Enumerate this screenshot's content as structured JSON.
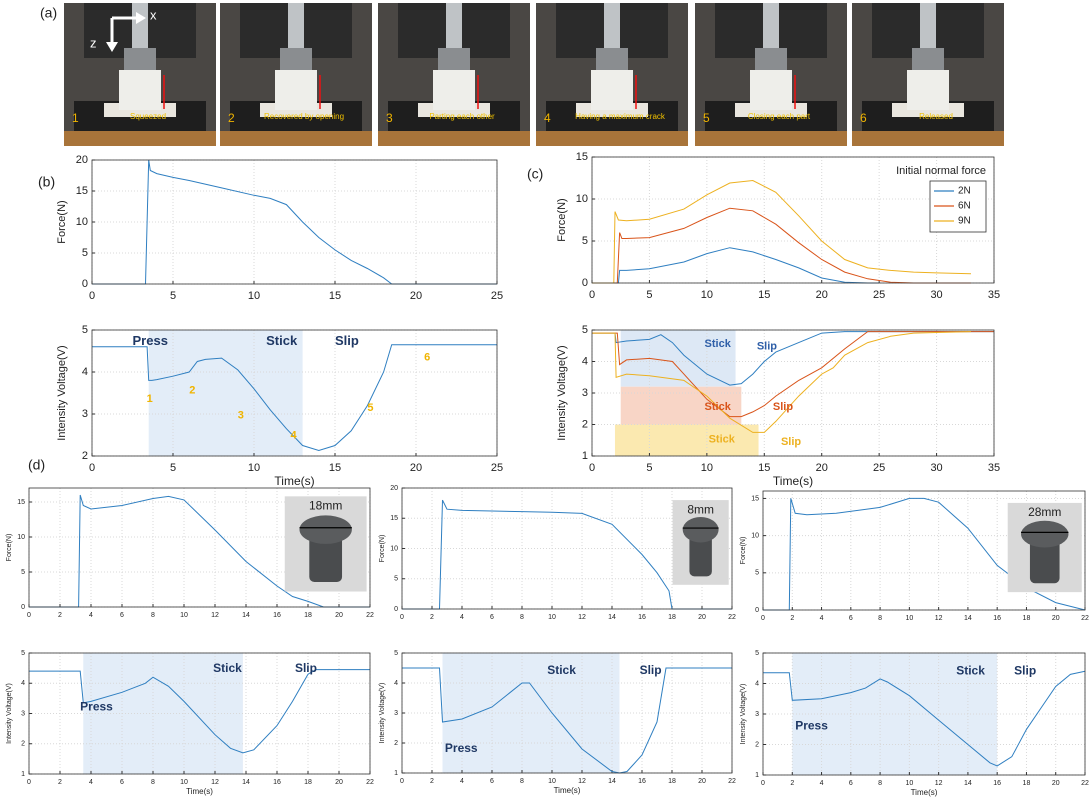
{
  "panel_labels": [
    "(a)",
    "(b)",
    "(c)",
    "(d)"
  ],
  "photo_axes": [
    "x",
    "z"
  ],
  "photos": [
    {
      "number": "1",
      "caption": "Squeezed"
    },
    {
      "number": "2",
      "caption": "Recovered by opening"
    },
    {
      "number": "3",
      "caption": "Parting each other"
    },
    {
      "number": "4",
      "caption": "Having a maximum crack"
    },
    {
      "number": "5",
      "caption": "Closing each part"
    },
    {
      "number": "6",
      "caption": "Released"
    }
  ],
  "chart_data": [
    {
      "type": "line",
      "ylabel": "Force(N)",
      "xlim": [
        0,
        25
      ],
      "ylim": [
        0,
        20
      ],
      "xticks": [
        0,
        5,
        10,
        15,
        20,
        25
      ],
      "yticks": [
        0,
        5,
        10,
        15,
        20
      ],
      "grid": true,
      "series": [
        {
          "color": "#2f7fc1",
          "x": [
            0,
            3.3,
            3.5,
            3.6,
            4,
            5,
            6,
            8,
            10,
            11,
            12,
            13,
            14,
            15,
            16,
            17,
            18,
            18.5,
            19,
            20,
            25
          ],
          "values": [
            0,
            0,
            20,
            18.3,
            17.8,
            17.2,
            16.7,
            15.5,
            14.3,
            13.8,
            12.8,
            10,
            7.5,
            5.5,
            3.8,
            2.5,
            1,
            0,
            0,
            0,
            0
          ]
        }
      ]
    },
    {
      "type": "line",
      "ylabel": "Intensity Voltage(V)",
      "xlabel": "Time(s)",
      "xlim": [
        0,
        25
      ],
      "ylim": [
        2,
        5
      ],
      "xticks": [
        0,
        5,
        10,
        15,
        20,
        25
      ],
      "yticks": [
        2,
        3,
        4,
        5
      ],
      "grid": true,
      "spans": [
        {
          "x": [
            3.5,
            13
          ],
          "color": "#e3edf8"
        }
      ],
      "series": [
        {
          "color": "#2f7fc1",
          "x": [
            0,
            3.4,
            3.5,
            3.7,
            4,
            5,
            6,
            6.5,
            7,
            8,
            9,
            10,
            11,
            12,
            13,
            14,
            15,
            16,
            17,
            18,
            18.5,
            20,
            25
          ],
          "values": [
            4.6,
            4.6,
            3.8,
            3.8,
            3.82,
            3.9,
            4.0,
            4.25,
            4.3,
            4.33,
            4.05,
            3.6,
            3.1,
            2.65,
            2.25,
            2.13,
            2.25,
            2.6,
            3.2,
            4.0,
            4.65,
            4.65,
            4.65
          ]
        }
      ],
      "annotations": [
        {
          "text": "Press",
          "color": "#1f3864"
        },
        {
          "text": "Stick",
          "color": "#1f3864"
        },
        {
          "text": "Slip",
          "color": "#1f3864"
        },
        {
          "text": "1",
          "color": "#f0b400"
        },
        {
          "text": "2",
          "color": "#f0b400"
        },
        {
          "text": "3",
          "color": "#f0b400"
        },
        {
          "text": "4",
          "color": "#f0b400"
        },
        {
          "text": "5",
          "color": "#f0b400"
        },
        {
          "text": "6",
          "color": "#f0b400"
        }
      ]
    },
    {
      "type": "line",
      "ylabel": "Force(N)",
      "xlim": [
        0,
        35
      ],
      "ylim": [
        0,
        15
      ],
      "xticks": [
        0,
        5,
        10,
        15,
        20,
        25,
        30,
        35
      ],
      "yticks": [
        0,
        5,
        10,
        15
      ],
      "grid": true,
      "legend_title": "Initial normal force",
      "legend": "upper right",
      "series": [
        {
          "name": "2N",
          "color": "#2f7fc1",
          "x": [
            0,
            2.3,
            2.4,
            3,
            5,
            8,
            10,
            12,
            14,
            16,
            18,
            20,
            22,
            24,
            25
          ],
          "values": [
            0,
            0,
            1.5,
            1.5,
            1.7,
            2.5,
            3.5,
            4.2,
            3.7,
            2.8,
            1.8,
            0.6,
            0.1,
            0,
            0
          ]
        },
        {
          "name": "6N",
          "color": "#d9541a",
          "x": [
            0,
            2.2,
            2.4,
            2.6,
            3,
            5,
            8,
            10,
            12,
            14,
            16,
            18,
            20,
            22,
            24,
            26,
            28,
            33
          ],
          "values": [
            0,
            0,
            6,
            5.3,
            5.3,
            5.4,
            6.5,
            7.8,
            8.9,
            8.6,
            7,
            4.8,
            2.8,
            1.3,
            0.5,
            0.1,
            0,
            0
          ]
        },
        {
          "name": "9N",
          "color": "#edb120",
          "x": [
            0,
            1.9,
            2.0,
            2.3,
            3,
            5,
            8,
            10,
            12,
            14,
            16,
            18,
            20,
            22,
            24,
            26,
            28,
            30,
            33
          ],
          "values": [
            0,
            0,
            8.5,
            7.5,
            7.4,
            7.6,
            8.8,
            10.5,
            11.9,
            12.2,
            10.8,
            8,
            5,
            2.8,
            1.8,
            1.5,
            1.3,
            1.2,
            1.1
          ]
        }
      ]
    },
    {
      "type": "line",
      "ylabel": "Intensity Voltage(V)",
      "xlabel": "Time(s)",
      "xlim": [
        0,
        35
      ],
      "ylim": [
        1,
        5
      ],
      "xticks": [
        0,
        5,
        10,
        15,
        20,
        25,
        30,
        35
      ],
      "yticks": [
        1,
        2,
        3,
        4,
        5
      ],
      "grid": true,
      "spans": [
        {
          "x": [
            2.5,
            12.5
          ],
          "y": [
            3.2,
            5
          ],
          "color": "#dde8f5"
        },
        {
          "x": [
            2.5,
            13
          ],
          "y": [
            2,
            3.2
          ],
          "color": "#f8d5c6"
        },
        {
          "x": [
            2,
            14.5
          ],
          "y": [
            1,
            2
          ],
          "color": "#fbe9b0"
        }
      ],
      "series": [
        {
          "color": "#2f7fc1",
          "x": [
            0,
            2,
            2.1,
            3,
            5,
            6,
            7,
            8,
            10,
            12,
            13,
            14,
            15,
            16,
            18,
            20,
            22,
            25,
            35
          ],
          "values": [
            4.9,
            4.9,
            4.6,
            4.65,
            4.7,
            4.85,
            4.6,
            4.2,
            3.6,
            3.25,
            3.3,
            3.6,
            4.0,
            4.3,
            4.6,
            4.9,
            4.95,
            4.95,
            4.95
          ]
        },
        {
          "color": "#d9541a",
          "x": [
            0,
            2.2,
            2.4,
            3,
            5,
            7,
            8,
            10,
            12,
            13,
            14,
            15,
            16,
            18,
            20,
            22,
            24,
            26,
            35
          ],
          "values": [
            4.9,
            4.9,
            3.9,
            4.05,
            4.1,
            4.0,
            3.6,
            2.8,
            2.25,
            2.25,
            2.4,
            2.6,
            2.9,
            3.4,
            3.8,
            4.4,
            4.95,
            4.95,
            4.95
          ]
        },
        {
          "color": "#edb120",
          "x": [
            0,
            2,
            2.1,
            3,
            5,
            8,
            10,
            12,
            14,
            15,
            16,
            18,
            20,
            21,
            22,
            24,
            26,
            28,
            30,
            33
          ],
          "values": [
            4.9,
            4.9,
            3.5,
            3.6,
            3.55,
            3.4,
            2.9,
            2.2,
            1.75,
            1.75,
            2.1,
            2.9,
            3.6,
            3.8,
            4.2,
            4.6,
            4.8,
            4.9,
            4.92,
            4.95
          ]
        }
      ],
      "annotations": [
        {
          "text": "Stick",
          "color": "#2f5fa8"
        },
        {
          "text": "Slip",
          "color": "#2f5fa8"
        },
        {
          "text": "Stick",
          "color": "#d9541a"
        },
        {
          "text": "Slip",
          "color": "#d9541a"
        },
        {
          "text": "Stick",
          "color": "#edb120"
        },
        {
          "text": "Slip",
          "color": "#edb120"
        }
      ]
    },
    {
      "type": "line",
      "ylabel": "Force(N)",
      "xlim": [
        0,
        22
      ],
      "ylim": [
        0,
        17
      ],
      "xticks": [
        0,
        2,
        4,
        6,
        8,
        10,
        12,
        14,
        16,
        18,
        20,
        22
      ],
      "yticks": [
        0,
        5,
        10,
        15
      ],
      "grid": true,
      "inset_label": "18mm",
      "series": [
        {
          "color": "#2f7fc1",
          "x": [
            0,
            3.2,
            3.3,
            3.5,
            4,
            6,
            8,
            9,
            10,
            12,
            14,
            16,
            17,
            18,
            19,
            20,
            22
          ],
          "values": [
            0,
            0,
            16,
            14.5,
            14,
            14.5,
            15.5,
            15.8,
            15.3,
            11,
            6.5,
            3,
            1.5,
            0.8,
            0,
            0,
            0
          ]
        }
      ]
    },
    {
      "type": "line",
      "ylabel": "Force(N)",
      "xlim": [
        0,
        22
      ],
      "ylim": [
        0,
        20
      ],
      "xticks": [
        0,
        2,
        4,
        6,
        8,
        10,
        12,
        14,
        16,
        18,
        20,
        22
      ],
      "yticks": [
        0,
        5,
        10,
        15,
        20
      ],
      "grid": true,
      "inset_label": "8mm",
      "series": [
        {
          "color": "#2f7fc1",
          "x": [
            0,
            2.5,
            2.7,
            3,
            4,
            6,
            8,
            10,
            12,
            14,
            16,
            17,
            17.8,
            18,
            20,
            22
          ],
          "values": [
            0,
            0,
            18,
            16.5,
            16.3,
            16.2,
            16.1,
            16,
            15.8,
            14,
            9,
            6,
            3,
            0,
            0,
            0
          ]
        }
      ]
    },
    {
      "type": "line",
      "ylabel": "Force(N)",
      "xlim": [
        0,
        22
      ],
      "ylim": [
        0,
        16
      ],
      "xticks": [
        0,
        2,
        4,
        6,
        8,
        10,
        12,
        14,
        16,
        18,
        20,
        22
      ],
      "yticks": [
        0,
        5,
        10,
        15
      ],
      "grid": true,
      "inset_label": "28mm",
      "series": [
        {
          "color": "#2f7fc1",
          "x": [
            0,
            1.8,
            1.9,
            2.2,
            3,
            5,
            8,
            10,
            11,
            12,
            14,
            16,
            18,
            20,
            22
          ],
          "values": [
            0,
            0,
            15,
            13,
            12.8,
            13,
            13.8,
            15,
            15,
            14.5,
            11,
            6,
            3,
            1,
            0
          ]
        }
      ]
    },
    {
      "type": "line",
      "ylabel": "Intensity Voltage(V)",
      "xlabel": "Time(s)",
      "xlim": [
        0,
        22
      ],
      "ylim": [
        1,
        5
      ],
      "xticks": [
        0,
        2,
        4,
        6,
        8,
        10,
        12,
        14,
        16,
        18,
        20,
        22
      ],
      "yticks": [
        1,
        2,
        3,
        4,
        5
      ],
      "grid": true,
      "spans": [
        {
          "x": [
            3.5,
            13.8
          ],
          "color": "#e3edf8"
        }
      ],
      "series": [
        {
          "color": "#2f7fc1",
          "x": [
            0,
            3.3,
            3.5,
            4,
            6,
            7,
            7.5,
            8,
            9,
            10,
            12,
            13,
            13.8,
            14.5,
            16,
            17,
            18,
            18.5,
            20,
            22
          ],
          "values": [
            4.4,
            4.4,
            3.35,
            3.4,
            3.7,
            3.9,
            4.0,
            4.2,
            3.9,
            3.4,
            2.3,
            1.85,
            1.7,
            1.8,
            2.6,
            3.4,
            4.3,
            4.45,
            4.45,
            4.45
          ]
        }
      ],
      "annotations": [
        {
          "text": "Press",
          "color": "#1f3864"
        },
        {
          "text": "Stick",
          "color": "#1f3864"
        },
        {
          "text": "Slip",
          "color": "#1f3864"
        }
      ]
    },
    {
      "type": "line",
      "ylabel": "Intensity Voltage(V)",
      "xlabel": "Time(s)",
      "xlim": [
        0,
        22
      ],
      "ylim": [
        1,
        5
      ],
      "xticks": [
        0,
        2,
        4,
        6,
        8,
        10,
        12,
        14,
        16,
        18,
        20,
        22
      ],
      "yticks": [
        1,
        2,
        3,
        4,
        5
      ],
      "grid": true,
      "spans": [
        {
          "x": [
            2.7,
            14.5
          ],
          "color": "#e3edf8"
        }
      ],
      "series": [
        {
          "color": "#2f7fc1",
          "x": [
            0,
            2.5,
            2.7,
            4,
            6,
            7,
            8,
            8.5,
            10,
            12,
            14,
            14.5,
            15,
            16,
            17,
            17.6,
            18,
            20,
            22
          ],
          "values": [
            4.5,
            4.5,
            2.7,
            2.8,
            3.2,
            3.6,
            4.0,
            4.0,
            3.0,
            1.8,
            1.05,
            1.0,
            1.05,
            1.6,
            2.7,
            4.5,
            4.5,
            4.5,
            4.5
          ]
        }
      ],
      "annotations": [
        {
          "text": "Press",
          "color": "#1f3864"
        },
        {
          "text": "Stick",
          "color": "#1f3864"
        },
        {
          "text": "Slip",
          "color": "#1f3864"
        }
      ]
    },
    {
      "type": "line",
      "ylabel": "Intensity Voltage(V)",
      "xlabel": "Time(s)",
      "xlim": [
        0,
        22
      ],
      "ylim": [
        1,
        5
      ],
      "xticks": [
        0,
        2,
        4,
        6,
        8,
        10,
        12,
        14,
        16,
        18,
        20,
        22
      ],
      "yticks": [
        1,
        2,
        3,
        4,
        5
      ],
      "grid": true,
      "spans": [
        {
          "x": [
            2,
            16
          ],
          "color": "#e3edf8"
        }
      ],
      "series": [
        {
          "color": "#2f7fc1",
          "x": [
            0,
            1.8,
            2,
            4,
            6,
            7,
            8,
            8.5,
            10,
            12,
            14,
            15.5,
            16,
            17,
            18,
            19,
            20,
            21,
            22
          ],
          "values": [
            4.35,
            4.35,
            3.45,
            3.5,
            3.7,
            3.85,
            4.15,
            4.05,
            3.6,
            2.8,
            2.0,
            1.4,
            1.3,
            1.6,
            2.5,
            3.2,
            3.9,
            4.3,
            4.4
          ]
        }
      ],
      "annotations": [
        {
          "text": "Press",
          "color": "#1f3864"
        },
        {
          "text": "Stick",
          "color": "#1f3864"
        },
        {
          "text": "Slip",
          "color": "#1f3864"
        }
      ]
    }
  ]
}
